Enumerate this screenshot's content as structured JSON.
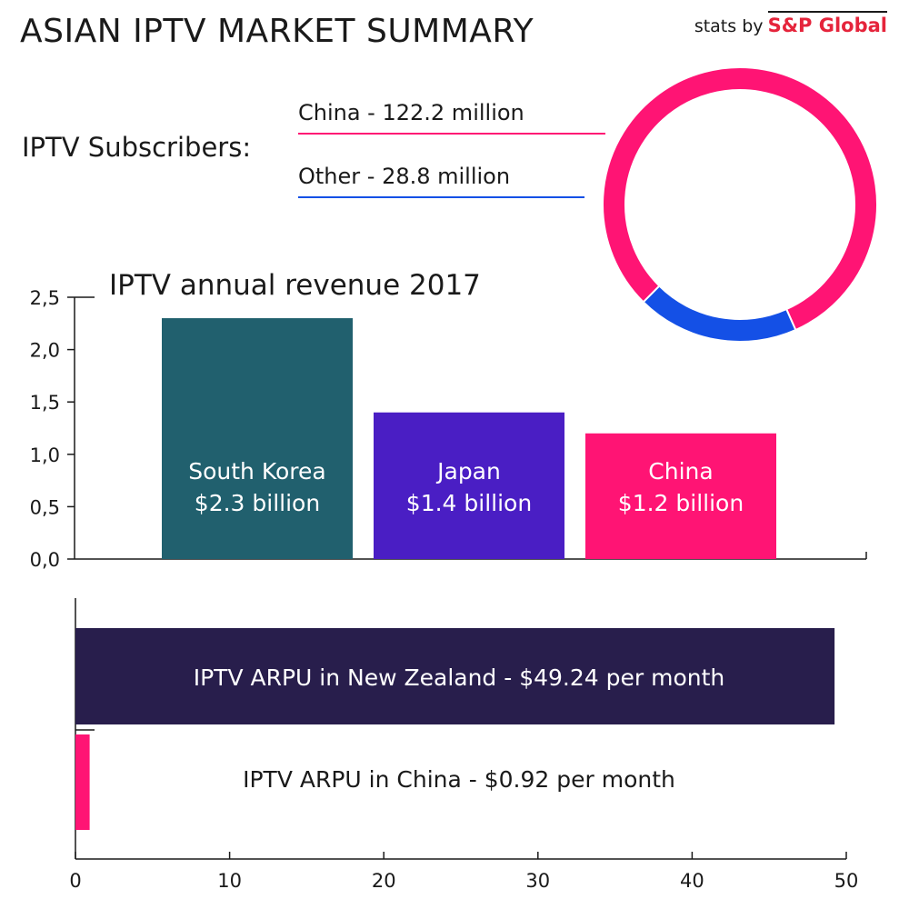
{
  "header": {
    "title": "ASIAN IPTV MARKET SUMMARY",
    "source_prefix": "stats by",
    "source_brand": "S&P Global"
  },
  "colors": {
    "china": "#ff1474",
    "other": "#1450e6",
    "south_korea": "#21606e",
    "japan": "#4a1ec4",
    "new_zealand": "#281e4c",
    "axis": "#1a1a1a"
  },
  "chart_data": [
    {
      "type": "pie",
      "variant": "donut",
      "label": "IPTV Subscribers:",
      "slices": [
        {
          "name": "China",
          "value": 122.2,
          "label": "China - 122.2 million",
          "color": "#ff1474"
        },
        {
          "name": "Other",
          "value": 28.8,
          "label": "Other - 28.8 million",
          "color": "#1450e6"
        }
      ],
      "unit": "million"
    },
    {
      "type": "bar",
      "title": "IPTV annual revenue 2017",
      "categories": [
        "South Korea",
        "Japan",
        "China"
      ],
      "values": [
        2.3,
        1.4,
        1.2
      ],
      "data_labels": [
        [
          "South Korea",
          "$2.3 billion"
        ],
        [
          "Japan",
          "$1.4 billion"
        ],
        [
          "China",
          "$1.2 billion"
        ]
      ],
      "colors": [
        "#21606e",
        "#4a1ec4",
        "#ff1474"
      ],
      "ylim": [
        0,
        2.5
      ],
      "yticks": [
        "0,0",
        "0,5",
        "1,0",
        "1,5",
        "2,0",
        "2,5"
      ],
      "grid": false
    },
    {
      "type": "bar",
      "orientation": "horizontal",
      "categories": [
        "New Zealand",
        "China"
      ],
      "values": [
        49.24,
        0.92
      ],
      "data_labels": [
        "IPTV ARPU in New Zealand - $49.24 per month",
        "IPTV ARPU in China - $0.92 per month"
      ],
      "colors": [
        "#281e4c",
        "#ff1474"
      ],
      "xlim": [
        0,
        50
      ],
      "xticks": [
        "0",
        "10",
        "20",
        "30",
        "40",
        "50"
      ],
      "grid": false
    }
  ]
}
